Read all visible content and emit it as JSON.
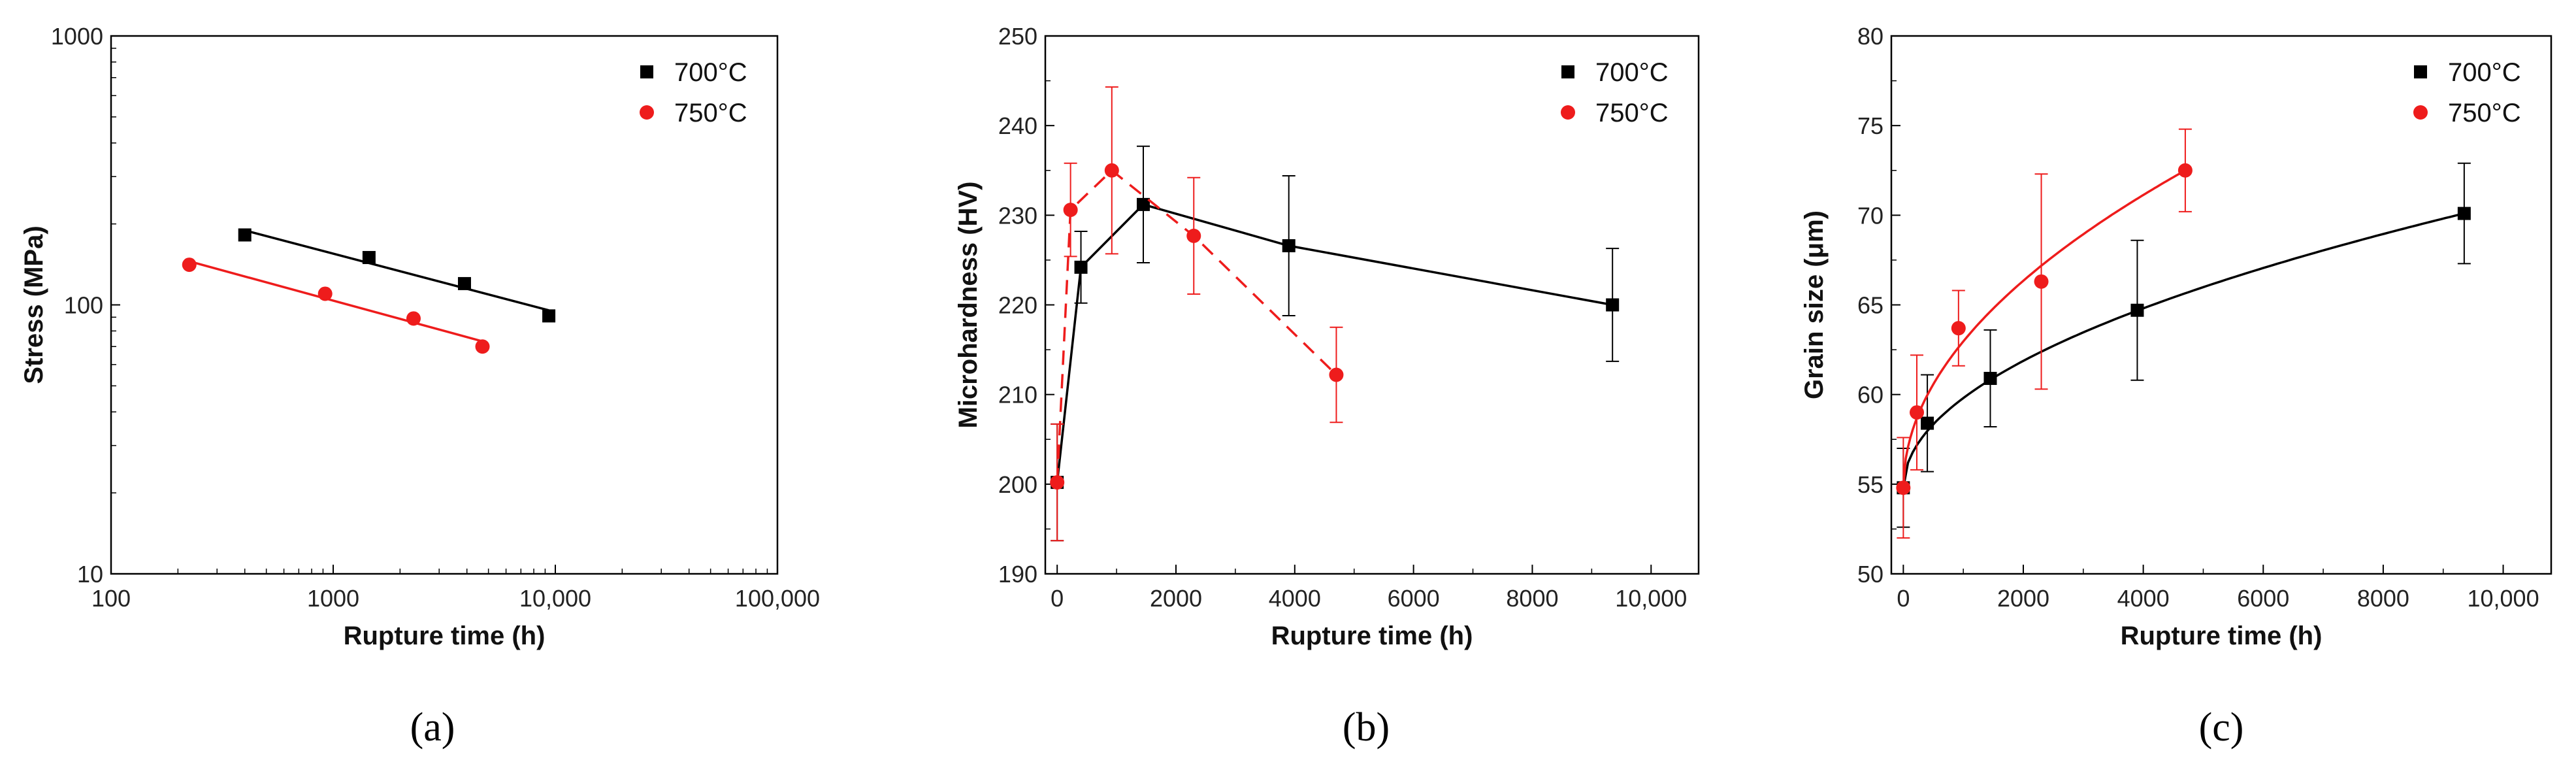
{
  "colors": {
    "s700": "#000000",
    "s750": "#ee1c1c",
    "axis": "#000000"
  },
  "chart_data": [
    {
      "type": "scatter",
      "panel_label": "(a)",
      "title": "",
      "xlabel": "Rupture time (h)",
      "ylabel": "Stress (MPa)",
      "xscale": "log",
      "yscale": "log",
      "xlim": [
        100,
        100000
      ],
      "ylim": [
        10,
        1000
      ],
      "xticks": [
        100,
        1000,
        10000,
        100000
      ],
      "xtick_labels": [
        "100",
        "1000",
        "10,000",
        "100,000"
      ],
      "yticks": [
        10,
        100,
        1000
      ],
      "ytick_labels": [
        "10",
        "100",
        "1000"
      ],
      "legend": "top-right",
      "series": [
        {
          "name": "700°C",
          "key": "s700",
          "marker": "square",
          "fit": "linear-log",
          "dashed": false,
          "x": [
            400,
            1450,
            3900,
            9350
          ],
          "y": [
            182,
            150,
            120,
            91
          ]
        },
        {
          "name": "750°C",
          "key": "s750",
          "marker": "circle",
          "fit": "linear-log",
          "dashed": false,
          "x": [
            225,
            920,
            2300,
            4700
          ],
          "y": [
            141,
            110,
            89,
            70
          ]
        }
      ]
    },
    {
      "type": "line",
      "panel_label": "(b)",
      "title": "",
      "xlabel": "Rupture time (h)",
      "ylabel": "Microhardness (HV)",
      "xscale": "linear",
      "yscale": "linear",
      "xlim": [
        -200,
        10800
      ],
      "ylim": [
        190,
        250
      ],
      "xticks": [
        0,
        2000,
        4000,
        6000,
        8000,
        10000
      ],
      "xtick_labels": [
        "0",
        "2000",
        "4000",
        "6000",
        "8000",
        "10,000"
      ],
      "yticks": [
        190,
        200,
        210,
        220,
        230,
        240,
        250
      ],
      "ytick_labels": [
        "190",
        "200",
        "210",
        "220",
        "230",
        "240",
        "250"
      ],
      "legend": "top-right",
      "series": [
        {
          "name": "700°C",
          "key": "s700",
          "marker": "square",
          "fit": "connect",
          "dashed": false,
          "x": [
            0,
            400,
            1450,
            3900,
            9350
          ],
          "y": [
            200.2,
            224.2,
            231.2,
            226.6,
            220
          ],
          "err": [
            6.5,
            4,
            6.5,
            7.8,
            6.3
          ]
        },
        {
          "name": "750°C",
          "key": "s750",
          "marker": "circle",
          "fit": "connect",
          "dashed": true,
          "x": [
            0,
            225,
            920,
            2300,
            4700
          ],
          "y": [
            200.2,
            230.6,
            235,
            227.7,
            212.2
          ],
          "err": [
            6.5,
            5.2,
            9.3,
            6.5,
            5.3
          ]
        }
      ]
    },
    {
      "type": "scatter",
      "panel_label": "(c)",
      "title": "",
      "xlabel": "Rupture time (h)",
      "ylabel": "Grain size (μm)",
      "xscale": "linear",
      "yscale": "linear",
      "xlim": [
        -200,
        10800
      ],
      "ylim": [
        50,
        80
      ],
      "xticks": [
        0,
        2000,
        4000,
        6000,
        8000,
        10000
      ],
      "xtick_labels": [
        "0",
        "2000",
        "4000",
        "6000",
        "8000",
        "10,000"
      ],
      "yticks": [
        50,
        55,
        60,
        65,
        70,
        75,
        80
      ],
      "ytick_labels": [
        "50",
        "55",
        "60",
        "65",
        "70",
        "75",
        "80"
      ],
      "legend": "top-right",
      "series": [
        {
          "name": "700°C",
          "key": "s700",
          "marker": "square",
          "fit": "power",
          "dashed": false,
          "x": [
            0,
            400,
            1450,
            3900,
            9350
          ],
          "y": [
            54.8,
            58.4,
            60.9,
            64.7,
            70.1
          ],
          "err": [
            2.2,
            2.7,
            2.7,
            3.9,
            2.8
          ]
        },
        {
          "name": "750°C",
          "key": "s750",
          "marker": "circle",
          "fit": "power",
          "dashed": false,
          "x": [
            0,
            225,
            920,
            2300,
            4700
          ],
          "y": [
            54.8,
            59,
            63.7,
            66.3,
            72.5
          ],
          "err": [
            2.8,
            3.2,
            2.1,
            6,
            2.3
          ]
        }
      ]
    }
  ]
}
